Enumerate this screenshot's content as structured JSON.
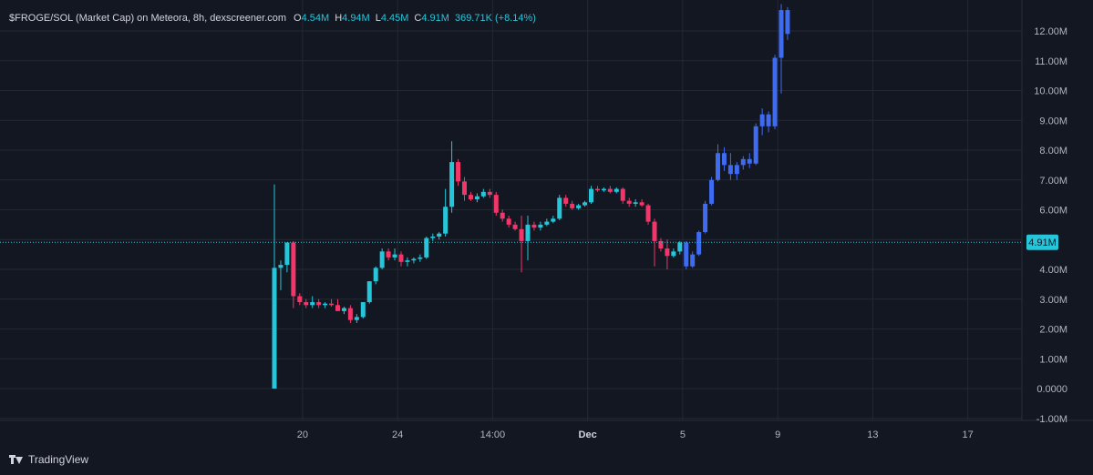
{
  "legend": {
    "title": "$FROGE/SOL (Market Cap) on Meteora, 8h, dexscreener.com",
    "o_label": "O",
    "o_value": "4.54M",
    "h_label": "H",
    "h_value": "4.94M",
    "l_label": "L",
    "l_value": "4.45M",
    "c_label": "C",
    "c_value": "4.91M",
    "change": "369.71K (+8.14%)"
  },
  "footer": {
    "brand": "TradingView"
  },
  "colors": {
    "up": "#26c6da",
    "down": "#f23669",
    "blue": "#3f6bf0",
    "grid": "#242833",
    "price_line": "#26c6da",
    "background": "#131722"
  },
  "chart_data": {
    "type": "candlestick",
    "current_price": 4.91,
    "current_price_label": "4.91M",
    "y_axis": {
      "min": -1.0,
      "max": 12.0,
      "ticks": [
        12,
        11,
        10,
        9,
        8,
        7,
        6,
        5,
        4,
        3,
        2,
        1,
        0,
        -1
      ],
      "tick_labels": [
        "12.00M",
        "11.00M",
        "10.00M",
        "9.00M",
        "8.00M",
        "7.00M",
        "6.00M",
        "",
        "4.00M",
        "3.00M",
        "2.00M",
        "1.00M",
        "0.0000",
        "-1.00M"
      ]
    },
    "x_axis": {
      "ticks": [
        {
          "i": 2,
          "label": "20",
          "bold": false
        },
        {
          "i": 17,
          "label": "24",
          "bold": false
        },
        {
          "i": 32,
          "label": "14:00",
          "bold": false
        },
        {
          "i": 47,
          "label": "Dec",
          "bold": true
        },
        {
          "i": 62,
          "label": "5",
          "bold": false
        },
        {
          "i": 77,
          "label": "9",
          "bold": false
        },
        {
          "i": 92,
          "label": "13",
          "bold": false
        },
        {
          "i": 107,
          "label": "17",
          "bold": false
        }
      ]
    },
    "candles": [
      {
        "i": 0,
        "o": 0.0,
        "h": 6.85,
        "l": 0.0,
        "c": 4.05,
        "color": "up"
      },
      {
        "i": 1,
        "o": 4.05,
        "h": 4.3,
        "l": 3.3,
        "c": 4.15,
        "color": "up"
      },
      {
        "i": 2,
        "o": 4.15,
        "h": 4.9,
        "l": 3.9,
        "c": 4.9,
        "color": "up"
      },
      {
        "i": 3,
        "o": 4.9,
        "h": 4.95,
        "l": 2.7,
        "c": 3.1,
        "color": "down"
      },
      {
        "i": 4,
        "o": 3.1,
        "h": 3.2,
        "l": 2.8,
        "c": 2.9,
        "color": "down"
      },
      {
        "i": 5,
        "o": 2.9,
        "h": 3.0,
        "l": 2.7,
        "c": 2.8,
        "color": "down"
      },
      {
        "i": 6,
        "o": 2.8,
        "h": 3.1,
        "l": 2.7,
        "c": 2.9,
        "color": "up"
      },
      {
        "i": 7,
        "o": 2.9,
        "h": 3.0,
        "l": 2.7,
        "c": 2.8,
        "color": "down"
      },
      {
        "i": 8,
        "o": 2.8,
        "h": 2.9,
        "l": 2.7,
        "c": 2.85,
        "color": "up"
      },
      {
        "i": 9,
        "o": 2.85,
        "h": 3.0,
        "l": 2.75,
        "c": 2.8,
        "color": "down"
      },
      {
        "i": 10,
        "o": 2.8,
        "h": 3.0,
        "l": 2.6,
        "c": 2.6,
        "color": "down"
      },
      {
        "i": 11,
        "o": 2.6,
        "h": 2.75,
        "l": 2.5,
        "c": 2.7,
        "color": "up"
      },
      {
        "i": 12,
        "o": 2.7,
        "h": 2.8,
        "l": 2.2,
        "c": 2.3,
        "color": "down"
      },
      {
        "i": 13,
        "o": 2.3,
        "h": 2.5,
        "l": 2.2,
        "c": 2.4,
        "color": "up"
      },
      {
        "i": 14,
        "o": 2.4,
        "h": 2.9,
        "l": 2.35,
        "c": 2.9,
        "color": "up"
      },
      {
        "i": 15,
        "o": 2.9,
        "h": 3.6,
        "l": 2.85,
        "c": 3.6,
        "color": "up"
      },
      {
        "i": 16,
        "o": 3.6,
        "h": 4.1,
        "l": 3.5,
        "c": 4.05,
        "color": "up"
      },
      {
        "i": 17,
        "o": 4.05,
        "h": 4.7,
        "l": 4.0,
        "c": 4.6,
        "color": "up"
      },
      {
        "i": 18,
        "o": 4.6,
        "h": 4.7,
        "l": 4.3,
        "c": 4.4,
        "color": "down"
      },
      {
        "i": 19,
        "o": 4.4,
        "h": 4.7,
        "l": 4.3,
        "c": 4.5,
        "color": "up"
      },
      {
        "i": 20,
        "o": 4.5,
        "h": 4.6,
        "l": 4.1,
        "c": 4.25,
        "color": "down"
      },
      {
        "i": 21,
        "o": 4.25,
        "h": 4.4,
        "l": 4.1,
        "c": 4.3,
        "color": "up"
      },
      {
        "i": 22,
        "o": 4.3,
        "h": 4.4,
        "l": 4.2,
        "c": 4.35,
        "color": "up"
      },
      {
        "i": 23,
        "o": 4.35,
        "h": 4.5,
        "l": 4.25,
        "c": 4.4,
        "color": "up"
      },
      {
        "i": 24,
        "o": 4.4,
        "h": 5.1,
        "l": 4.35,
        "c": 5.05,
        "color": "up"
      },
      {
        "i": 25,
        "o": 5.05,
        "h": 5.2,
        "l": 4.95,
        "c": 5.1,
        "color": "up"
      },
      {
        "i": 26,
        "o": 5.1,
        "h": 5.25,
        "l": 5.0,
        "c": 5.2,
        "color": "up"
      },
      {
        "i": 27,
        "o": 5.2,
        "h": 6.7,
        "l": 5.1,
        "c": 6.1,
        "color": "up"
      },
      {
        "i": 28,
        "o": 6.1,
        "h": 8.3,
        "l": 5.9,
        "c": 7.6,
        "color": "up"
      },
      {
        "i": 29,
        "o": 7.6,
        "h": 7.7,
        "l": 6.8,
        "c": 6.95,
        "color": "down"
      },
      {
        "i": 30,
        "o": 6.95,
        "h": 7.1,
        "l": 6.3,
        "c": 6.5,
        "color": "down"
      },
      {
        "i": 31,
        "o": 6.5,
        "h": 6.6,
        "l": 6.3,
        "c": 6.35,
        "color": "down"
      },
      {
        "i": 32,
        "o": 6.35,
        "h": 6.55,
        "l": 6.25,
        "c": 6.45,
        "color": "up"
      },
      {
        "i": 33,
        "o": 6.45,
        "h": 6.7,
        "l": 6.4,
        "c": 6.6,
        "color": "up"
      },
      {
        "i": 34,
        "o": 6.6,
        "h": 6.7,
        "l": 6.4,
        "c": 6.5,
        "color": "down"
      },
      {
        "i": 35,
        "o": 6.5,
        "h": 6.6,
        "l": 5.8,
        "c": 5.9,
        "color": "down"
      },
      {
        "i": 36,
        "o": 5.9,
        "h": 6.0,
        "l": 5.6,
        "c": 5.7,
        "color": "down"
      },
      {
        "i": 37,
        "o": 5.7,
        "h": 5.8,
        "l": 5.4,
        "c": 5.5,
        "color": "down"
      },
      {
        "i": 38,
        "o": 5.5,
        "h": 5.6,
        "l": 5.3,
        "c": 5.35,
        "color": "down"
      },
      {
        "i": 39,
        "o": 5.35,
        "h": 5.8,
        "l": 3.9,
        "c": 4.95,
        "color": "down"
      },
      {
        "i": 40,
        "o": 4.95,
        "h": 5.8,
        "l": 4.3,
        "c": 5.5,
        "color": "up"
      },
      {
        "i": 41,
        "o": 5.5,
        "h": 5.6,
        "l": 5.3,
        "c": 5.4,
        "color": "down"
      },
      {
        "i": 42,
        "o": 5.4,
        "h": 5.6,
        "l": 5.3,
        "c": 5.5,
        "color": "up"
      },
      {
        "i": 43,
        "o": 5.5,
        "h": 5.7,
        "l": 5.45,
        "c": 5.6,
        "color": "up"
      },
      {
        "i": 44,
        "o": 5.6,
        "h": 5.8,
        "l": 5.55,
        "c": 5.7,
        "color": "up"
      },
      {
        "i": 45,
        "o": 5.7,
        "h": 6.5,
        "l": 5.65,
        "c": 6.4,
        "color": "up"
      },
      {
        "i": 46,
        "o": 6.4,
        "h": 6.5,
        "l": 6.1,
        "c": 6.2,
        "color": "down"
      },
      {
        "i": 47,
        "o": 6.2,
        "h": 6.3,
        "l": 6.0,
        "c": 6.05,
        "color": "down"
      },
      {
        "i": 48,
        "o": 6.05,
        "h": 6.2,
        "l": 6.0,
        "c": 6.15,
        "color": "up"
      },
      {
        "i": 49,
        "o": 6.15,
        "h": 6.3,
        "l": 6.1,
        "c": 6.25,
        "color": "up"
      },
      {
        "i": 50,
        "o": 6.25,
        "h": 6.8,
        "l": 6.2,
        "c": 6.7,
        "color": "up"
      },
      {
        "i": 51,
        "o": 6.7,
        "h": 6.8,
        "l": 6.6,
        "c": 6.65,
        "color": "down"
      },
      {
        "i": 52,
        "o": 6.65,
        "h": 6.75,
        "l": 6.6,
        "c": 6.7,
        "color": "up"
      },
      {
        "i": 53,
        "o": 6.7,
        "h": 6.8,
        "l": 6.55,
        "c": 6.6,
        "color": "down"
      },
      {
        "i": 54,
        "o": 6.6,
        "h": 6.75,
        "l": 6.55,
        "c": 6.7,
        "color": "up"
      },
      {
        "i": 55,
        "o": 6.7,
        "h": 6.75,
        "l": 6.2,
        "c": 6.3,
        "color": "down"
      },
      {
        "i": 56,
        "o": 6.3,
        "h": 6.4,
        "l": 6.1,
        "c": 6.2,
        "color": "down"
      },
      {
        "i": 57,
        "o": 6.2,
        "h": 6.35,
        "l": 6.1,
        "c": 6.25,
        "color": "up"
      },
      {
        "i": 58,
        "o": 6.25,
        "h": 6.35,
        "l": 6.1,
        "c": 6.15,
        "color": "down"
      },
      {
        "i": 59,
        "o": 6.15,
        "h": 6.2,
        "l": 5.5,
        "c": 5.6,
        "color": "down"
      },
      {
        "i": 60,
        "o": 5.6,
        "h": 5.7,
        "l": 4.1,
        "c": 4.95,
        "color": "down"
      },
      {
        "i": 61,
        "o": 4.95,
        "h": 5.05,
        "l": 4.6,
        "c": 4.7,
        "color": "down"
      },
      {
        "i": 62,
        "o": 4.7,
        "h": 5.0,
        "l": 4.0,
        "c": 4.45,
        "color": "down"
      },
      {
        "i": 63,
        "o": 4.45,
        "h": 4.7,
        "l": 4.4,
        "c": 4.6,
        "color": "up"
      },
      {
        "i": 64,
        "o": 4.6,
        "h": 4.95,
        "l": 4.5,
        "c": 4.9,
        "color": "up"
      },
      {
        "i": 65,
        "o": 4.9,
        "h": 4.95,
        "l": 4.0,
        "c": 4.1,
        "color": "blue"
      },
      {
        "i": 66,
        "o": 4.1,
        "h": 4.6,
        "l": 4.05,
        "c": 4.5,
        "color": "blue"
      },
      {
        "i": 67,
        "o": 4.5,
        "h": 5.3,
        "l": 4.45,
        "c": 5.25,
        "color": "blue"
      },
      {
        "i": 68,
        "o": 5.25,
        "h": 6.3,
        "l": 5.2,
        "c": 6.2,
        "color": "blue"
      },
      {
        "i": 69,
        "o": 6.2,
        "h": 7.1,
        "l": 6.15,
        "c": 7.0,
        "color": "blue"
      },
      {
        "i": 70,
        "o": 7.0,
        "h": 8.2,
        "l": 6.95,
        "c": 7.9,
        "color": "blue"
      },
      {
        "i": 71,
        "o": 7.9,
        "h": 8.1,
        "l": 7.3,
        "c": 7.5,
        "color": "blue"
      },
      {
        "i": 72,
        "o": 7.5,
        "h": 7.9,
        "l": 7.0,
        "c": 7.2,
        "color": "blue"
      },
      {
        "i": 73,
        "o": 7.2,
        "h": 7.6,
        "l": 7.0,
        "c": 7.5,
        "color": "blue"
      },
      {
        "i": 74,
        "o": 7.5,
        "h": 7.8,
        "l": 7.35,
        "c": 7.7,
        "color": "blue"
      },
      {
        "i": 75,
        "o": 7.7,
        "h": 7.9,
        "l": 7.4,
        "c": 7.55,
        "color": "blue"
      },
      {
        "i": 76,
        "o": 7.55,
        "h": 8.9,
        "l": 7.5,
        "c": 8.8,
        "color": "blue"
      },
      {
        "i": 77,
        "o": 8.8,
        "h": 9.4,
        "l": 8.5,
        "c": 9.2,
        "color": "blue"
      },
      {
        "i": 78,
        "o": 9.2,
        "h": 9.3,
        "l": 8.6,
        "c": 8.8,
        "color": "blue"
      },
      {
        "i": 79,
        "o": 8.8,
        "h": 11.2,
        "l": 8.7,
        "c": 11.1,
        "color": "blue"
      },
      {
        "i": 80,
        "o": 11.1,
        "h": 12.9,
        "l": 9.9,
        "c": 12.7,
        "color": "blue"
      },
      {
        "i": 81,
        "o": 12.7,
        "h": 12.8,
        "l": 11.7,
        "c": 11.9,
        "color": "blue"
      }
    ]
  }
}
